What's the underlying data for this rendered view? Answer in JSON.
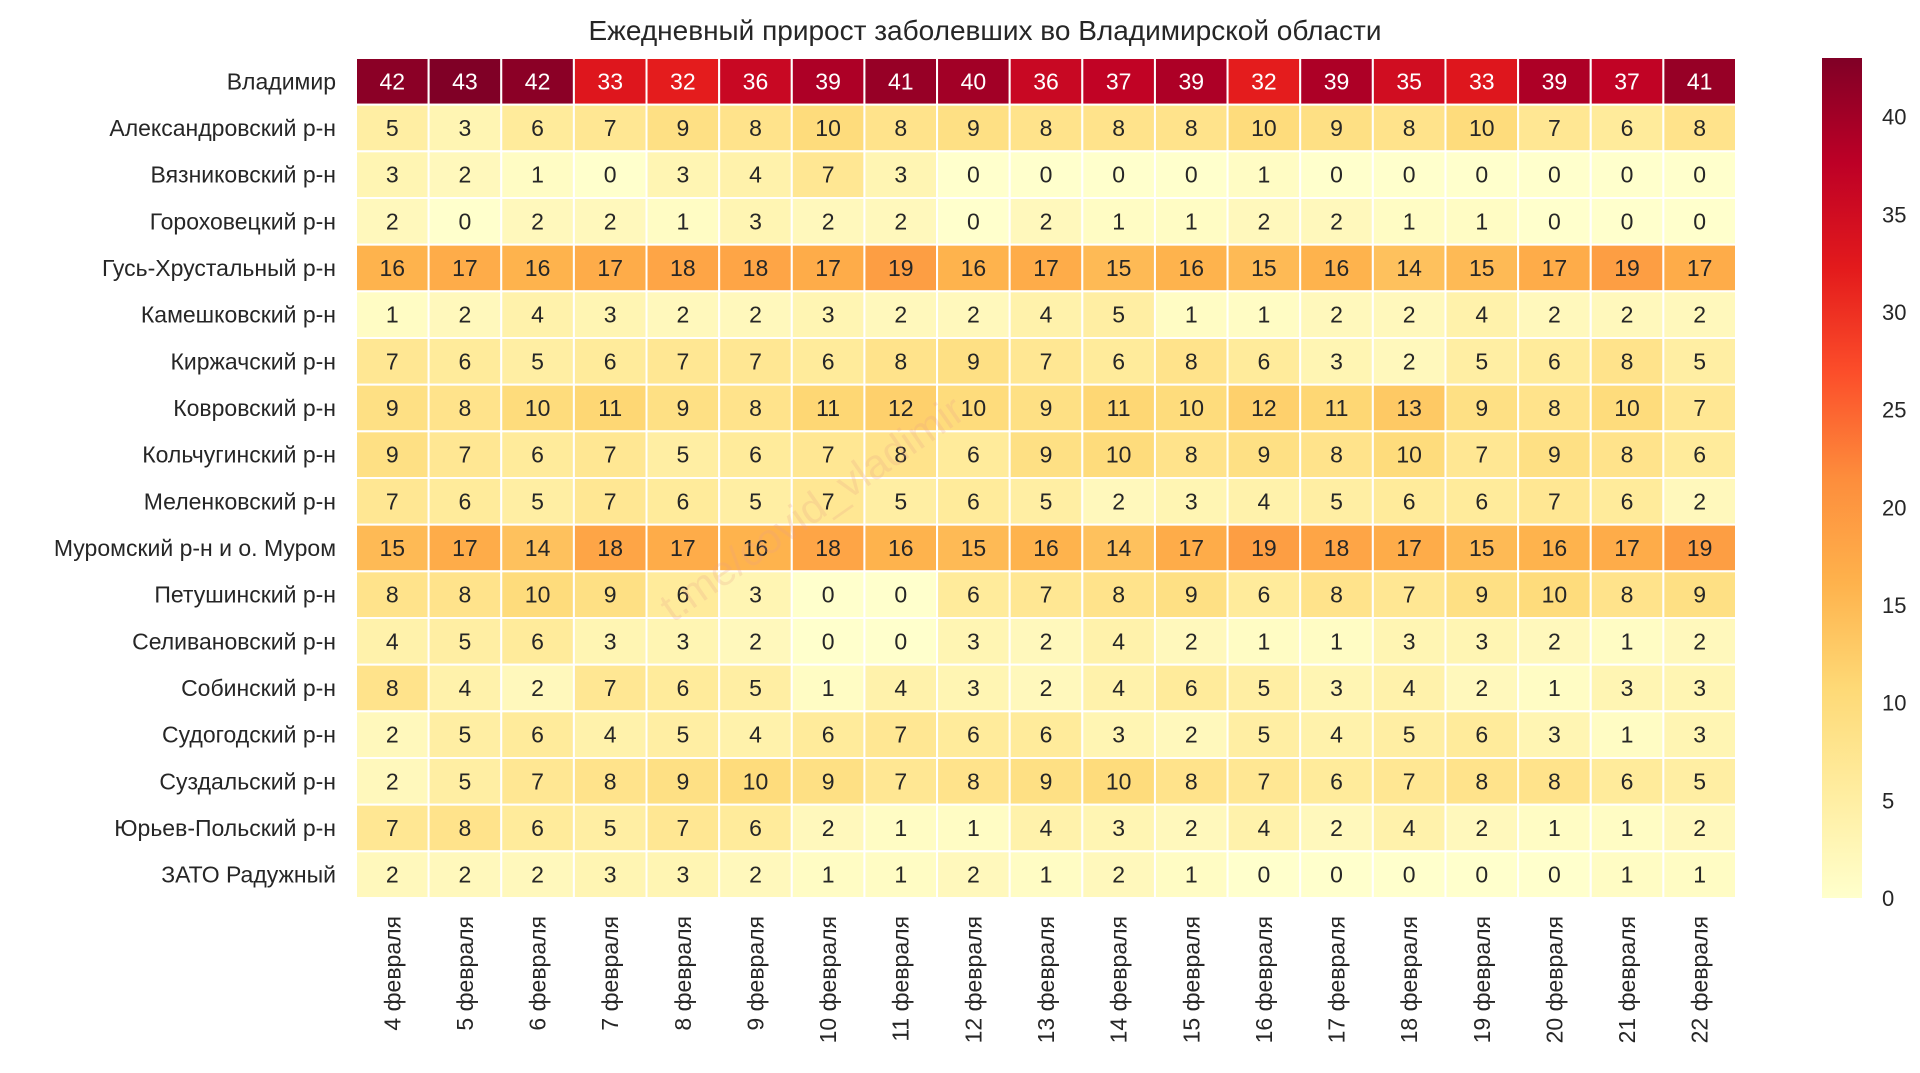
{
  "chart_data": {
    "type": "heatmap",
    "title": "Ежедневный прирост заболевших во Владимирской области",
    "watermark": "t.me/covid_vladimir",
    "x": [
      "4 февраля",
      "5 февраля",
      "6 февраля",
      "7 февраля",
      "8 февраля",
      "9 февраля",
      "10 февраля",
      "11 февраля",
      "12 февраля",
      "13 февраля",
      "14 февраля",
      "15 февраля",
      "16 февраля",
      "17 февраля",
      "18 февраля",
      "19 февраля",
      "20 февраля",
      "21 февраля",
      "22 февраля"
    ],
    "y": [
      "Владимир",
      "Александровский р-н",
      "Вязниковский р-н",
      "Гороховецкий р-н",
      "Гусь-Хрустальный р-н",
      "Камешковский р-н",
      "Киржачский р-н",
      "Ковровский р-н",
      "Кольчугинский р-н",
      "Меленковский р-н",
      "Муромский р-н и о. Муром",
      "Петушинский р-н",
      "Селивановский р-н",
      "Собинский р-н",
      "Судогодский р-н",
      "Суздальский р-н",
      "Юрьев-Польский р-н",
      "ЗАТО Радужный"
    ],
    "values": [
      [
        42,
        43,
        42,
        33,
        32,
        36,
        39,
        41,
        40,
        36,
        37,
        39,
        32,
        39,
        35,
        33,
        39,
        37,
        41
      ],
      [
        5,
        3,
        6,
        7,
        9,
        8,
        10,
        8,
        9,
        8,
        8,
        8,
        10,
        9,
        8,
        10,
        7,
        6,
        8
      ],
      [
        3,
        2,
        1,
        0,
        3,
        4,
        7,
        3,
        0,
        0,
        0,
        0,
        1,
        0,
        0,
        0,
        0,
        0,
        0
      ],
      [
        2,
        0,
        2,
        2,
        1,
        3,
        2,
        2,
        0,
        2,
        1,
        1,
        2,
        2,
        1,
        1,
        0,
        0,
        0
      ],
      [
        16,
        17,
        16,
        17,
        18,
        18,
        17,
        19,
        16,
        17,
        15,
        16,
        15,
        16,
        14,
        15,
        17,
        19,
        17
      ],
      [
        1,
        2,
        4,
        3,
        2,
        2,
        3,
        2,
        2,
        4,
        5,
        1,
        1,
        2,
        2,
        4,
        2,
        2,
        2
      ],
      [
        7,
        6,
        5,
        6,
        7,
        7,
        6,
        8,
        9,
        7,
        6,
        8,
        6,
        3,
        2,
        5,
        6,
        8,
        5
      ],
      [
        9,
        8,
        10,
        11,
        9,
        8,
        11,
        12,
        10,
        9,
        11,
        10,
        12,
        11,
        13,
        9,
        8,
        10,
        7
      ],
      [
        9,
        7,
        6,
        7,
        5,
        6,
        7,
        8,
        6,
        9,
        10,
        8,
        9,
        8,
        10,
        7,
        9,
        8,
        6
      ],
      [
        7,
        6,
        5,
        7,
        6,
        5,
        7,
        5,
        6,
        5,
        2,
        3,
        4,
        5,
        6,
        6,
        7,
        6,
        2
      ],
      [
        15,
        17,
        14,
        18,
        17,
        16,
        18,
        16,
        15,
        16,
        14,
        17,
        19,
        18,
        17,
        15,
        16,
        17,
        19
      ],
      [
        8,
        8,
        10,
        9,
        6,
        3,
        0,
        0,
        6,
        7,
        8,
        9,
        6,
        8,
        7,
        9,
        10,
        8,
        9
      ],
      [
        4,
        5,
        6,
        3,
        3,
        2,
        0,
        0,
        3,
        2,
        4,
        2,
        1,
        1,
        3,
        3,
        2,
        1,
        2
      ],
      [
        8,
        4,
        2,
        7,
        6,
        5,
        1,
        4,
        3,
        2,
        4,
        6,
        5,
        3,
        4,
        2,
        1,
        3,
        3
      ],
      [
        2,
        5,
        6,
        4,
        5,
        4,
        6,
        7,
        6,
        6,
        3,
        2,
        5,
        4,
        5,
        6,
        3,
        1,
        3
      ],
      [
        2,
        5,
        7,
        8,
        9,
        10,
        9,
        7,
        8,
        9,
        10,
        8,
        7,
        6,
        7,
        8,
        8,
        6,
        5
      ],
      [
        7,
        8,
        6,
        5,
        7,
        6,
        2,
        1,
        1,
        4,
        3,
        2,
        4,
        2,
        4,
        2,
        1,
        1,
        2
      ],
      [
        2,
        2,
        2,
        3,
        3,
        2,
        1,
        1,
        2,
        1,
        2,
        1,
        0,
        0,
        0,
        0,
        0,
        1,
        1
      ]
    ],
    "colorbar": {
      "min": 0,
      "max": 43,
      "ticks": [
        0,
        5,
        10,
        15,
        20,
        25,
        30,
        35,
        40
      ]
    },
    "colormap": [
      "#ffffcc",
      "#ffeda0",
      "#fed976",
      "#feb24c",
      "#fd8d3c",
      "#fc4e2a",
      "#e31a1c",
      "#bd0026",
      "#800026"
    ],
    "grid": false
  }
}
